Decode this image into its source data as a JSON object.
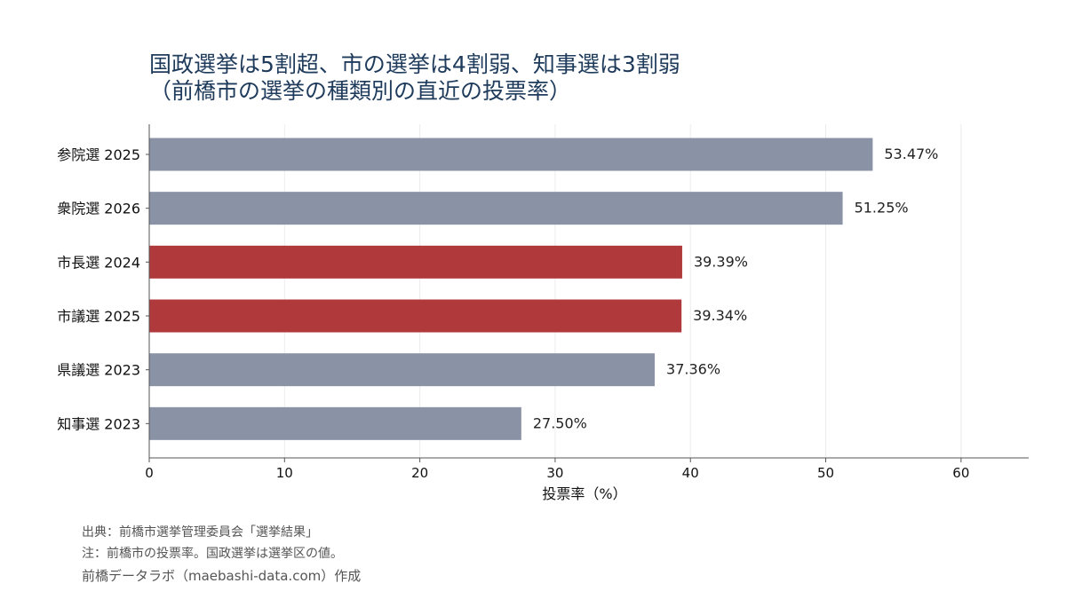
{
  "title": {
    "line1": "国政選挙は5割超、市の選挙は4割弱、知事選は3割弱",
    "line2": "（前橋市の選挙の種類別の直近の投票率）"
  },
  "footer": {
    "source": "出典：前橋市選挙管理委員会「選挙結果」",
    "note": "注：前橋市の投票率。国政選挙は選挙区の値。",
    "credit": "前橋データラボ（maebashi-data.com）作成"
  },
  "chart_data": {
    "type": "bar",
    "orientation": "horizontal",
    "categories": [
      "参院選 2025",
      "衆院選 2026",
      "市長選 2024",
      "市議選 2025",
      "県議選 2023",
      "知事選 2023"
    ],
    "values": [
      53.47,
      51.25,
      39.39,
      39.34,
      37.36,
      27.5
    ],
    "value_labels": [
      "53.47%",
      "51.25%",
      "39.39%",
      "39.34%",
      "37.36%",
      "27.50%"
    ],
    "bar_colors": [
      "#8a93a6",
      "#8a93a6",
      "#b0393b",
      "#b0393b",
      "#8a93a6",
      "#8a93a6"
    ],
    "xlabel": "投票率（%）",
    "xlim": [
      0,
      65
    ],
    "xticks": [
      0,
      10,
      20,
      30,
      40,
      50,
      60
    ],
    "grid": "vertical"
  },
  "colors": {
    "title": "#1f3b5c",
    "highlight": "#b0393b",
    "default_bar": "#8a93a6"
  }
}
